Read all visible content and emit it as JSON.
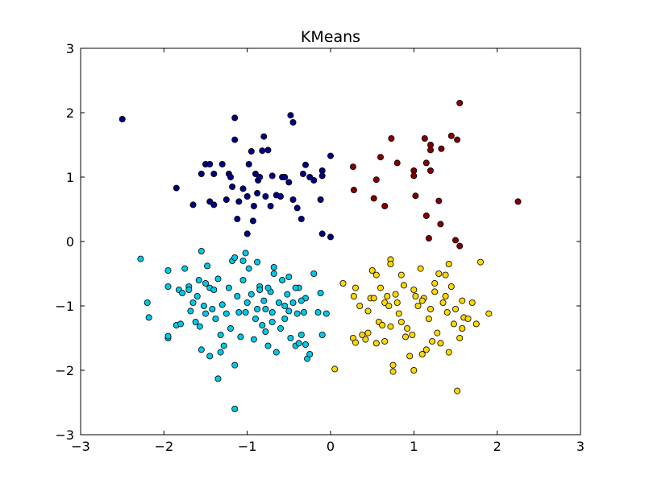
{
  "chart_data": {
    "type": "scatter",
    "title": "KMeans",
    "xlabel": "",
    "ylabel": "",
    "xlim": [
      -3,
      3
    ],
    "ylim": [
      -3,
      3
    ],
    "xticks": [
      -3,
      -2,
      -1,
      0,
      1,
      2,
      3
    ],
    "yticks": [
      -3,
      -2,
      -1,
      0,
      1,
      2,
      3
    ],
    "xtick_labels": [
      "−3",
      "−2",
      "−1",
      "0",
      "1",
      "2",
      "3"
    ],
    "ytick_labels": [
      "−3",
      "−2",
      "−1",
      "0",
      "1",
      "2",
      "3"
    ],
    "grid": false,
    "legend": "none",
    "series": [
      {
        "color": "#000080",
        "points": [
          [
            -2.5,
            1.9
          ],
          [
            -1.85,
            0.83
          ],
          [
            -1.65,
            0.57
          ],
          [
            -1.55,
            1.05
          ],
          [
            -1.5,
            1.2
          ],
          [
            -1.45,
            1.2
          ],
          [
            -1.45,
            0.62
          ],
          [
            -1.4,
            0.57
          ],
          [
            -1.4,
            1.05
          ],
          [
            -1.3,
            1.2
          ],
          [
            -1.25,
            0.65
          ],
          [
            -1.22,
            1.05
          ],
          [
            -1.2,
            1.0
          ],
          [
            -1.18,
            0.85
          ],
          [
            -1.15,
            1.92
          ],
          [
            -1.15,
            1.58
          ],
          [
            -1.12,
            0.35
          ],
          [
            -1.1,
            0.62
          ],
          [
            -1.05,
            0.82
          ],
          [
            -1.0,
            0.7
          ],
          [
            -0.98,
            1.2
          ],
          [
            -0.95,
            1.4
          ],
          [
            -0.93,
            0.32
          ],
          [
            -0.92,
            0.55
          ],
          [
            -0.9,
            1.05
          ],
          [
            -0.88,
            0.75
          ],
          [
            -0.87,
            0.95
          ],
          [
            -0.85,
            1.0
          ],
          [
            -0.82,
            1.41
          ],
          [
            -0.8,
            1.63
          ],
          [
            -0.78,
            0.7
          ],
          [
            -0.75,
            1.42
          ],
          [
            -0.72,
            0.55
          ],
          [
            -0.7,
            1.02
          ],
          [
            -0.65,
            0.72
          ],
          [
            -0.6,
            0.7
          ],
          [
            -0.58,
            1.0
          ],
          [
            -0.55,
            1.0
          ],
          [
            -0.5,
            0.92
          ],
          [
            -0.48,
            1.96
          ],
          [
            -0.45,
            1.85
          ],
          [
            -0.45,
            0.65
          ],
          [
            -0.4,
            0.52
          ],
          [
            -0.35,
            0.35
          ],
          [
            -0.33,
            1.05
          ],
          [
            -0.3,
            1.19
          ],
          [
            -0.25,
            1.0
          ],
          [
            -0.2,
            0.95
          ],
          [
            -0.12,
            0.65
          ],
          [
            -0.1,
            1.1
          ],
          [
            -0.1,
            1.02
          ],
          [
            -0.1,
            0.12
          ],
          [
            0.0,
            1.33
          ],
          [
            0.0,
            0.07
          ],
          [
            -1.0,
            0.12
          ]
        ]
      },
      {
        "color": "#800000",
        "points": [
          [
            0.27,
            1.16
          ],
          [
            0.28,
            0.8
          ],
          [
            0.52,
            0.67
          ],
          [
            0.55,
            0.96
          ],
          [
            0.6,
            1.31
          ],
          [
            0.65,
            0.55
          ],
          [
            0.73,
            1.6
          ],
          [
            0.8,
            1.22
          ],
          [
            1.0,
            1.1
          ],
          [
            1.0,
            1.02
          ],
          [
            1.02,
            0.71
          ],
          [
            1.13,
            1.6
          ],
          [
            1.15,
            0.4
          ],
          [
            1.15,
            1.22
          ],
          [
            1.18,
            0.05
          ],
          [
            1.2,
            1.5
          ],
          [
            1.2,
            1.42
          ],
          [
            1.2,
            1.1
          ],
          [
            1.3,
            0.63
          ],
          [
            1.32,
            0.27
          ],
          [
            1.33,
            1.44
          ],
          [
            1.45,
            1.64
          ],
          [
            1.5,
            0.02
          ],
          [
            1.52,
            1.58
          ],
          [
            1.55,
            2.15
          ],
          [
            1.55,
            -0.07
          ],
          [
            2.25,
            0.62
          ]
        ]
      },
      {
        "color": "#00c8e6",
        "points": [
          [
            -2.28,
            -0.27
          ],
          [
            -2.2,
            -0.95
          ],
          [
            -2.18,
            -1.18
          ],
          [
            -1.95,
            -0.45
          ],
          [
            -1.95,
            -0.7
          ],
          [
            -1.95,
            -1.5
          ],
          [
            -1.95,
            -1.47
          ],
          [
            -1.85,
            -1.3
          ],
          [
            -1.82,
            -0.75
          ],
          [
            -1.8,
            -1.28
          ],
          [
            -1.78,
            -0.8
          ],
          [
            -1.75,
            -0.42
          ],
          [
            -1.7,
            -0.7
          ],
          [
            -1.7,
            -0.75
          ],
          [
            -1.68,
            -1.08
          ],
          [
            -1.65,
            -0.95
          ],
          [
            -1.62,
            -1.25
          ],
          [
            -1.6,
            -0.85
          ],
          [
            -1.58,
            -0.6
          ],
          [
            -1.57,
            -1.32
          ],
          [
            -1.55,
            -0.15
          ],
          [
            -1.55,
            -1.68
          ],
          [
            -1.52,
            -1.0
          ],
          [
            -1.5,
            -0.65
          ],
          [
            -1.5,
            -1.12
          ],
          [
            -1.48,
            -0.38
          ],
          [
            -1.45,
            -0.72
          ],
          [
            -1.42,
            -1.05
          ],
          [
            -1.4,
            -0.75
          ],
          [
            -1.38,
            -1.2
          ],
          [
            -1.35,
            -0.58
          ],
          [
            -1.32,
            -1.45
          ],
          [
            -1.3,
            -0.98
          ],
          [
            -1.28,
            -1.62
          ],
          [
            -1.25,
            -1.12
          ],
          [
            -1.22,
            -0.72
          ],
          [
            -1.2,
            -1.35
          ],
          [
            -1.18,
            -0.3
          ],
          [
            -1.15,
            -0.25
          ],
          [
            -1.12,
            -0.85
          ],
          [
            -1.1,
            -1.1
          ],
          [
            -1.08,
            -1.48
          ],
          [
            -1.05,
            -0.6
          ],
          [
            -1.02,
            -1.1
          ],
          [
            -1.0,
            -0.95
          ],
          [
            -0.98,
            -0.42
          ],
          [
            -0.95,
            -0.82
          ],
          [
            -0.92,
            -1.52
          ],
          [
            -0.9,
            -1.2
          ],
          [
            -0.88,
            -1.05
          ],
          [
            -0.85,
            -0.7
          ],
          [
            -0.82,
            -1.3
          ],
          [
            -0.8,
            -0.92
          ],
          [
            -0.78,
            -1.4
          ],
          [
            -0.75,
            -1.62
          ],
          [
            -0.72,
            -0.78
          ],
          [
            -0.7,
            -1.1
          ],
          [
            -0.68,
            -0.5
          ],
          [
            -0.65,
            -1.72
          ],
          [
            -0.62,
            -0.95
          ],
          [
            -0.6,
            -1.35
          ],
          [
            -0.58,
            -0.6
          ],
          [
            -0.55,
            -1.2
          ],
          [
            -0.52,
            -0.82
          ],
          [
            -0.5,
            -1.08
          ],
          [
            -0.48,
            -1.5
          ],
          [
            -0.45,
            -0.95
          ],
          [
            -0.42,
            -1.62
          ],
          [
            -0.4,
            -1.12
          ],
          [
            -0.38,
            -0.72
          ],
          [
            -0.35,
            -1.45
          ],
          [
            -0.32,
            -1.1
          ],
          [
            -0.3,
            -0.88
          ],
          [
            -0.28,
            -1.82
          ],
          [
            -0.25,
            -1.75
          ],
          [
            -0.2,
            -0.5
          ],
          [
            -0.15,
            -1.1
          ],
          [
            -0.12,
            -0.8
          ],
          [
            -0.1,
            -1.45
          ],
          [
            -0.05,
            -1.12
          ],
          [
            -1.35,
            -2.13
          ],
          [
            -1.15,
            -2.6
          ],
          [
            -1.15,
            -1.92
          ],
          [
            -1.45,
            -1.78
          ],
          [
            -1.32,
            -1.72
          ],
          [
            -1.05,
            -0.3
          ],
          [
            -1.02,
            -0.18
          ],
          [
            -0.88,
            -0.32
          ],
          [
            -0.85,
            -0.75
          ],
          [
            -0.78,
            -1.05
          ],
          [
            -0.75,
            -0.72
          ],
          [
            -0.7,
            -1.25
          ],
          [
            -0.68,
            -0.4
          ],
          [
            -0.55,
            -1.0
          ],
          [
            -0.5,
            -0.55
          ],
          [
            -0.42,
            -0.72
          ],
          [
            -0.38,
            -1.58
          ],
          [
            -0.35,
            -0.92
          ],
          [
            -0.3,
            -1.6
          ]
        ]
      },
      {
        "color": "#ffd700",
        "points": [
          [
            0.05,
            -1.98
          ],
          [
            0.15,
            -0.65
          ],
          [
            0.27,
            -1.5
          ],
          [
            0.28,
            -0.85
          ],
          [
            0.3,
            -1.57
          ],
          [
            0.3,
            -0.72
          ],
          [
            0.35,
            -1.0
          ],
          [
            0.38,
            -1.45
          ],
          [
            0.42,
            -1.52
          ],
          [
            0.45,
            -1.42
          ],
          [
            0.45,
            -1.08
          ],
          [
            0.48,
            -0.88
          ],
          [
            0.5,
            -0.45
          ],
          [
            0.52,
            -0.88
          ],
          [
            0.55,
            -0.52
          ],
          [
            0.55,
            -1.58
          ],
          [
            0.58,
            -1.25
          ],
          [
            0.6,
            -0.72
          ],
          [
            0.62,
            -1.3
          ],
          [
            0.65,
            -0.95
          ],
          [
            0.68,
            -0.85
          ],
          [
            0.7,
            -1.0
          ],
          [
            0.72,
            -0.28
          ],
          [
            0.72,
            -0.35
          ],
          [
            0.72,
            -1.32
          ],
          [
            0.75,
            -1.92
          ],
          [
            0.75,
            -2.02
          ],
          [
            0.78,
            -0.82
          ],
          [
            0.8,
            -0.95
          ],
          [
            0.82,
            -1.12
          ],
          [
            0.85,
            -1.25
          ],
          [
            0.88,
            -0.68
          ],
          [
            0.9,
            -1.48
          ],
          [
            0.92,
            -1.35
          ],
          [
            0.95,
            -1.78
          ],
          [
            0.98,
            -1.45
          ],
          [
            1.0,
            -0.75
          ],
          [
            1.0,
            -2.0
          ],
          [
            1.02,
            -0.85
          ],
          [
            1.05,
            -1.0
          ],
          [
            1.08,
            -0.42
          ],
          [
            1.1,
            -1.75
          ],
          [
            1.12,
            -0.88
          ],
          [
            1.15,
            -1.68
          ],
          [
            1.18,
            -1.2
          ],
          [
            1.2,
            -1.05
          ],
          [
            1.22,
            -1.55
          ],
          [
            1.25,
            -0.78
          ],
          [
            1.28,
            -1.42
          ],
          [
            1.3,
            -0.5
          ],
          [
            1.32,
            -1.58
          ],
          [
            1.35,
            -0.95
          ],
          [
            1.38,
            -0.85
          ],
          [
            1.4,
            -1.1
          ],
          [
            1.42,
            -1.72
          ],
          [
            1.45,
            -0.7
          ],
          [
            1.48,
            -1.28
          ],
          [
            1.5,
            -1.05
          ],
          [
            1.52,
            -2.32
          ],
          [
            1.55,
            -1.5
          ],
          [
            1.58,
            -0.92
          ],
          [
            1.6,
            -1.18
          ],
          [
            1.65,
            -1.2
          ],
          [
            1.7,
            -0.95
          ],
          [
            1.75,
            -1.28
          ],
          [
            1.8,
            -0.32
          ],
          [
            1.9,
            -1.12
          ],
          [
            1.38,
            -0.52
          ],
          [
            1.42,
            -0.35
          ],
          [
            1.25,
            -0.65
          ],
          [
            1.1,
            -0.92
          ],
          [
            0.85,
            -0.52
          ],
          [
            0.65,
            -1.55
          ],
          [
            1.58,
            -1.35
          ]
        ]
      }
    ]
  }
}
